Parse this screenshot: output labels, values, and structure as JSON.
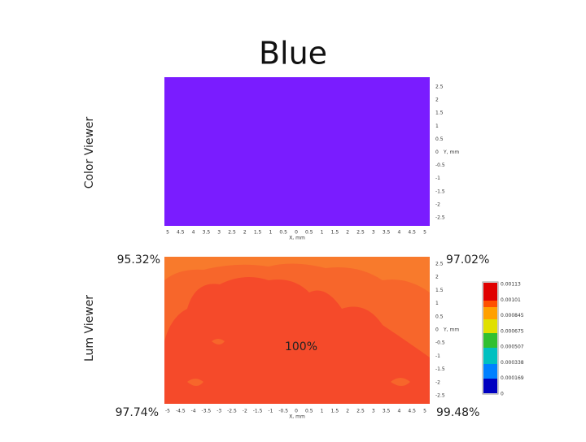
{
  "title": "Blue",
  "color_viewer": {
    "label": "Color Viewer",
    "y_ticks": [
      "2.5",
      "2",
      "1.5",
      "1",
      "0.5",
      "0",
      "-0.5",
      "-1",
      "-1.5",
      "-2",
      "-2.5"
    ],
    "y_axis_label": "Y, mm",
    "x_ticks": [
      "5",
      "4.5",
      "4",
      "3.5",
      "3",
      "2.5",
      "2",
      "1.5",
      "1",
      "0.5",
      "0",
      "0.5",
      "1",
      "1.5",
      "2",
      "2.5",
      "3",
      "3.5",
      "4",
      "4.5",
      "5"
    ],
    "x_axis_label": "X, mm"
  },
  "lum_viewer": {
    "label": "Lum Viewer",
    "top_left": "95.32%",
    "top_right": "97.02%",
    "bottom_left": "97.74%",
    "bottom_right": "99.48%",
    "center": "100%",
    "y_ticks": [
      "2.5",
      "2",
      "1.5",
      "1",
      "0.5",
      "0",
      "-0.5",
      "-1",
      "-1.5",
      "-2",
      "-2.5"
    ],
    "y_axis_label": "Y, mm",
    "x_ticks": [
      "-5",
      "-4.5",
      "-4",
      "-3.5",
      "-3",
      "-2.5",
      "-2",
      "-1.5",
      "-1",
      "-0.5",
      "0",
      "0.5",
      "1",
      "1.5",
      "2",
      "2.5",
      "3",
      "3.5",
      "4",
      "4.5",
      "5"
    ],
    "x_axis_label": "X, mm",
    "colorbar_ticks": [
      "0.00113",
      "0.00101",
      "0.000845",
      "0.000675",
      "0.000507",
      "0.000338",
      "0.000169",
      "0"
    ]
  }
}
